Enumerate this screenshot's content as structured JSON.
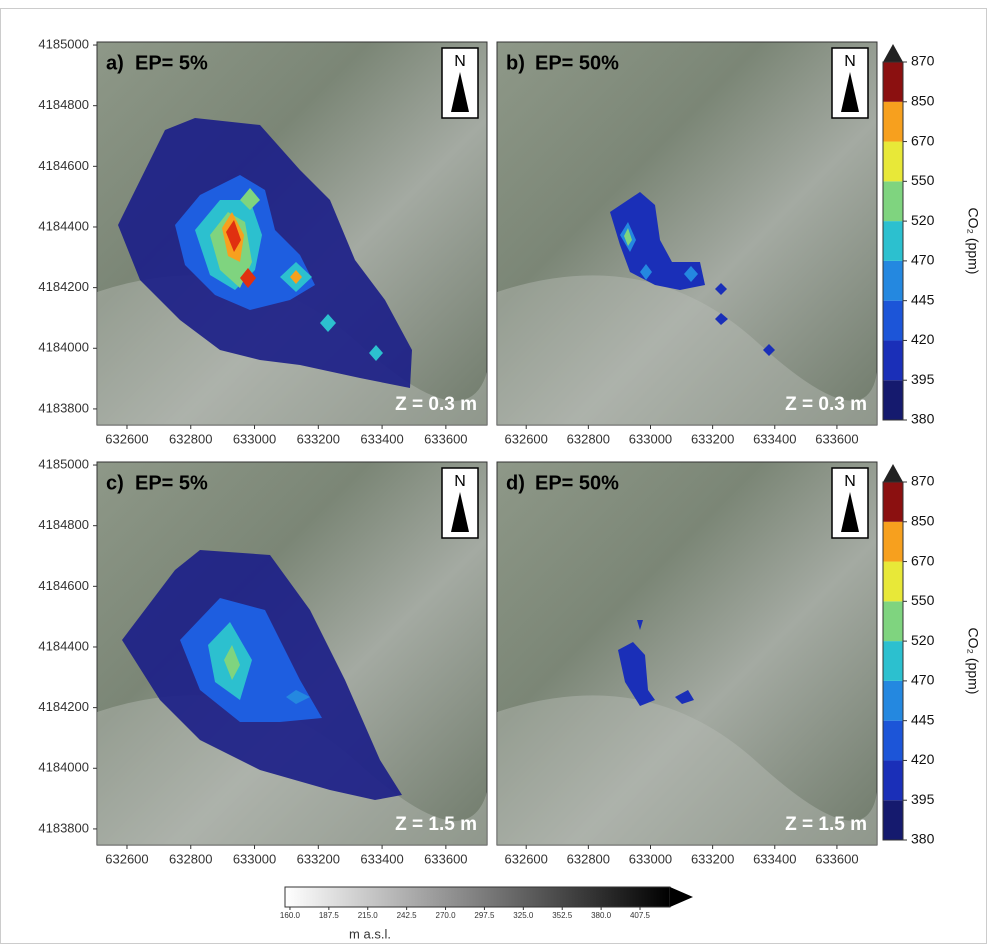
{
  "panels": [
    {
      "label": "a)",
      "title": "EP= 5%",
      "height": "Z = 0.3 m",
      "north": "N"
    },
    {
      "label": "b)",
      "title": "EP= 50%",
      "height": "Z = 0.3 m",
      "north": "N"
    },
    {
      "label": "c)",
      "title": "EP= 5%",
      "height": "Z = 1.5 m",
      "north": "N"
    },
    {
      "label": "d)",
      "title": "EP= 50%",
      "height": "Z = 1.5 m",
      "north": "N"
    }
  ],
  "x_axis": {
    "xlim": [
      632506,
      633729
    ],
    "xticks": [
      632600,
      632800,
      633000,
      633200,
      633400,
      633600
    ]
  },
  "y_axis": {
    "ylim": [
      4183747,
      4185010
    ],
    "yticks": [
      4183800,
      4184000,
      4184200,
      4184400,
      4184600,
      4184800,
      4185000
    ]
  },
  "co2_colorbar": {
    "label": "CO₂ (ppm)",
    "levels": [
      380,
      395,
      420,
      445,
      470,
      520,
      550,
      670,
      850,
      870
    ],
    "colors": [
      "#151a6e",
      "#1a2fb8",
      "#1c55d8",
      "#2488e0",
      "#2cc0cf",
      "#7fd47f",
      "#e8e838",
      "#f7a01e",
      "#8b1010"
    ]
  },
  "elevation_colorbar": {
    "label": "m a.s.l.",
    "lim": [
      156.5,
      428.7
    ],
    "ticks": [
      {
        "value": 160,
        "label": "160.0"
      },
      {
        "value": 187.5,
        "label": "187.5"
      },
      {
        "value": 215,
        "label": "215.0"
      },
      {
        "value": 242.5,
        "label": "242.5"
      },
      {
        "value": 270,
        "label": "270.0"
      },
      {
        "value": 297.5,
        "label": "297.5"
      },
      {
        "value": 325,
        "label": "325.0"
      },
      {
        "value": 352.5,
        "label": "352.5"
      },
      {
        "value": 380,
        "label": "380.0"
      },
      {
        "value": 407.5,
        "label": "407.5"
      }
    ]
  }
}
